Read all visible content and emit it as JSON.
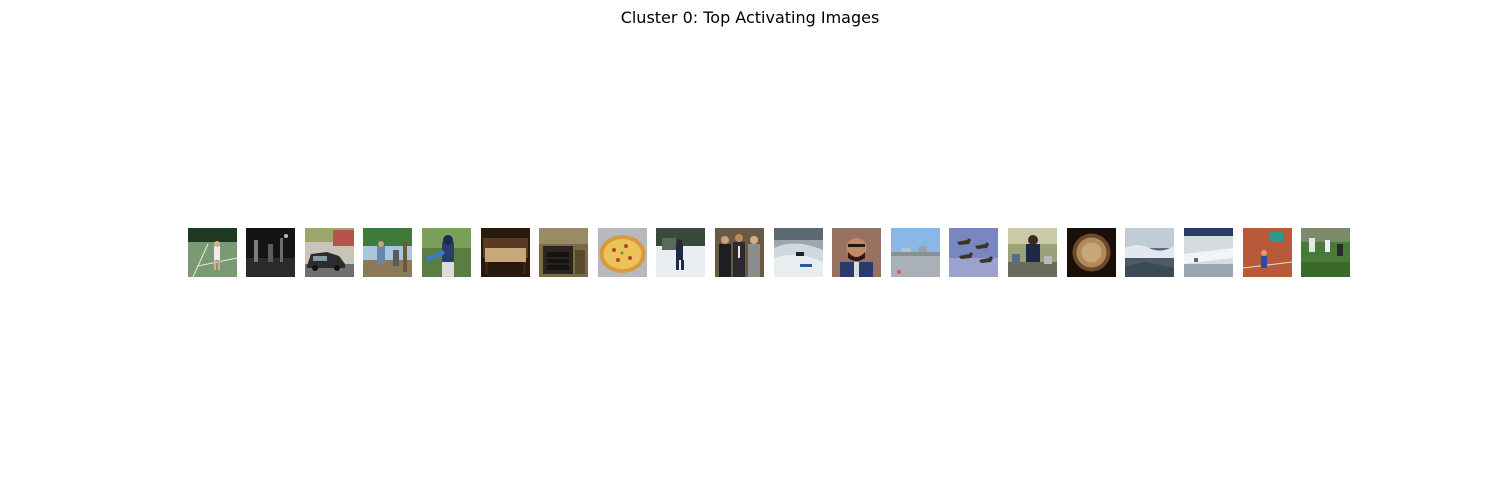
{
  "figure": {
    "title": "Cluster 0: Top Activating Images"
  },
  "thumbnails": [
    {
      "name": "tennis-player-thumbnail"
    },
    {
      "name": "dark-street-thumbnail"
    },
    {
      "name": "parked-cars-thumbnail"
    },
    {
      "name": "outdoor-people-thumbnail"
    },
    {
      "name": "child-batting-thumbnail"
    },
    {
      "name": "bed-thumbnail"
    },
    {
      "name": "fireplace-room-thumbnail"
    },
    {
      "name": "pizza-thumbnail"
    },
    {
      "name": "snow-skier-thumbnail"
    },
    {
      "name": "men-in-suits-thumbnail"
    },
    {
      "name": "surfer-wave-thumbnail"
    },
    {
      "name": "smiling-man-thumbnail"
    },
    {
      "name": "airport-runway-thumbnail"
    },
    {
      "name": "airplane-formation-thumbnail"
    },
    {
      "name": "seated-people-thumbnail"
    },
    {
      "name": "round-plate-thumbnail"
    },
    {
      "name": "aerial-cloud-view-thumbnail"
    },
    {
      "name": "boat-dock-thumbnail"
    },
    {
      "name": "tennis-court-thumbnail"
    },
    {
      "name": "soccer-field-thumbnail"
    }
  ]
}
